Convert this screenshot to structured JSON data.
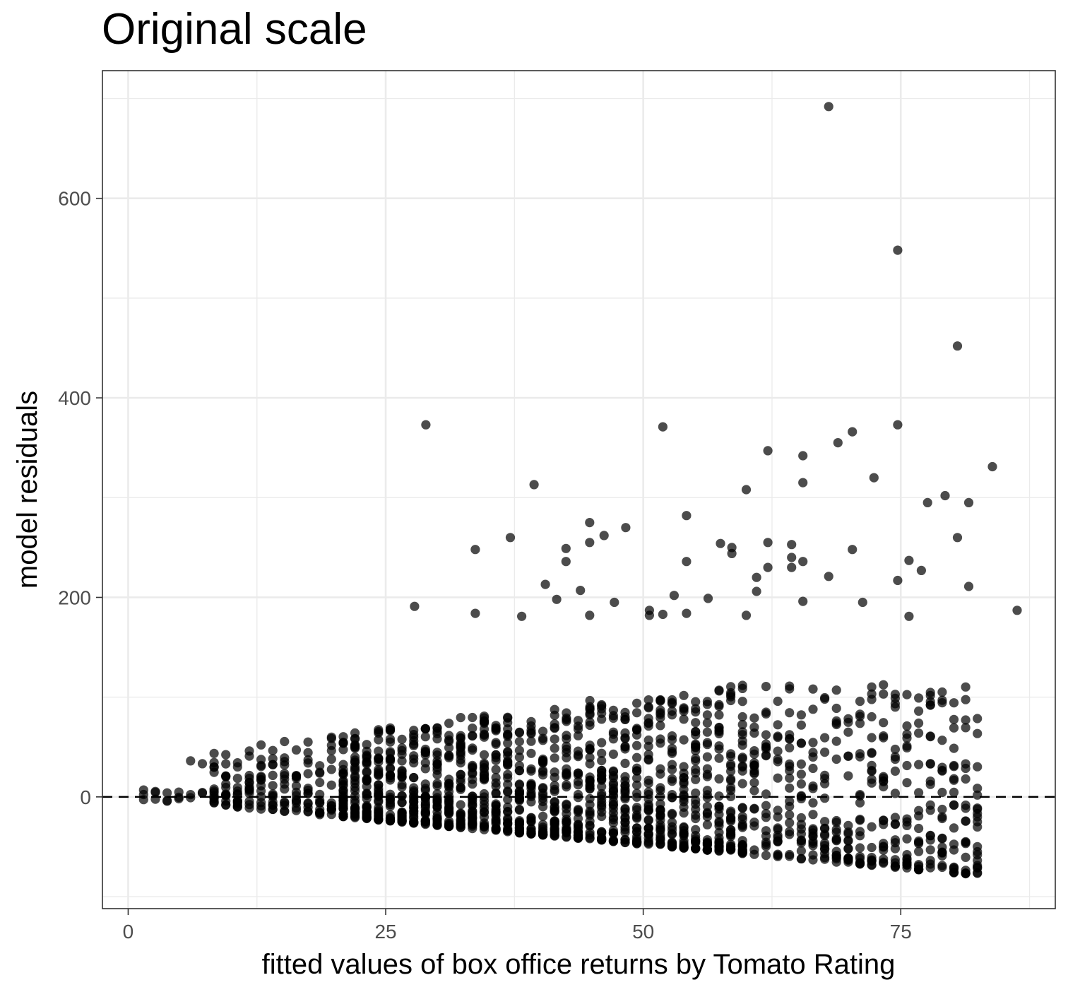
{
  "chart_data": {
    "type": "scatter",
    "title": "Original scale",
    "xlabel": "fitted values of box office returns by Tomato Rating",
    "ylabel": "model residuals",
    "xlim": [
      -2.5,
      90
    ],
    "ylim": [
      -112,
      728
    ],
    "x_ticks": [
      "0",
      "25",
      "50",
      "75"
    ],
    "x_tick_values": [
      0,
      25,
      50,
      75
    ],
    "x_minor_values": [
      12.5,
      37.5,
      62.5,
      87.5
    ],
    "y_ticks": [
      "0",
      "200",
      "400",
      "600"
    ],
    "y_tick_values": [
      0,
      200,
      400,
      600
    ],
    "y_minor_values": [
      -100,
      100,
      300,
      500,
      700
    ],
    "reference_line": {
      "y": 0,
      "style": "dashed",
      "color": "#000000"
    },
    "grid": true,
    "point_color": "#000000",
    "point_opacity": 0.7,
    "outliers": [
      [
        68,
        692
      ],
      [
        74.7,
        548
      ],
      [
        80.5,
        452
      ],
      [
        28.9,
        373
      ],
      [
        51.9,
        371
      ],
      [
        74.7,
        373
      ],
      [
        70.3,
        366
      ],
      [
        68.9,
        355
      ],
      [
        62.1,
        347
      ],
      [
        65.5,
        342
      ],
      [
        83.9,
        331
      ],
      [
        72.4,
        320
      ],
      [
        65.5,
        315
      ],
      [
        39.4,
        313
      ],
      [
        60,
        308
      ],
      [
        79.3,
        302
      ],
      [
        77.6,
        295
      ],
      [
        81.6,
        295
      ],
      [
        54.2,
        282
      ],
      [
        44.8,
        275
      ],
      [
        48.3,
        270
      ],
      [
        46.2,
        262
      ],
      [
        37.1,
        260
      ],
      [
        44.8,
        255
      ],
      [
        62.1,
        255
      ],
      [
        64.4,
        253
      ],
      [
        42.5,
        249
      ],
      [
        33.7,
        248
      ],
      [
        57.5,
        254
      ],
      [
        58.6,
        250
      ],
      [
        70.3,
        248
      ],
      [
        80.5,
        260
      ],
      [
        42.5,
        236
      ],
      [
        54.2,
        236
      ],
      [
        64.4,
        240
      ],
      [
        65.5,
        236
      ],
      [
        75.8,
        237
      ],
      [
        58.6,
        244
      ],
      [
        62.1,
        230
      ],
      [
        64.4,
        230
      ],
      [
        77,
        227
      ],
      [
        61,
        220
      ],
      [
        68,
        221
      ],
      [
        74.7,
        217
      ],
      [
        81.6,
        211
      ],
      [
        40.5,
        213
      ],
      [
        43.9,
        207
      ],
      [
        61,
        206
      ],
      [
        53,
        202
      ],
      [
        56.3,
        199
      ],
      [
        41.6,
        198
      ],
      [
        47.2,
        195
      ],
      [
        65.5,
        196
      ],
      [
        27.8,
        191
      ],
      [
        71.3,
        195
      ],
      [
        50.6,
        187
      ],
      [
        86.3,
        187
      ],
      [
        33.7,
        184
      ],
      [
        38.2,
        181
      ],
      [
        44.8,
        182
      ],
      [
        54.2,
        184
      ],
      [
        50.6,
        182
      ],
      [
        51.9,
        183
      ],
      [
        60,
        182
      ],
      [
        75.8,
        181
      ]
    ],
    "note_points": "remaining points sampled from a dense fan-shaped cloud"
  }
}
